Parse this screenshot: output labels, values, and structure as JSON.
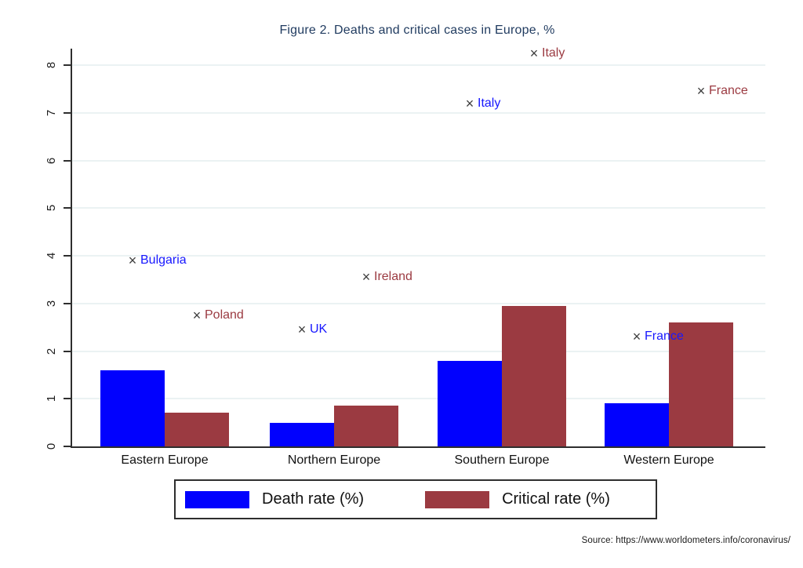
{
  "colors": {
    "death_bar": "#0101fe",
    "critical_bar": "#9b3a41",
    "death_label": "#1717ff",
    "critical_label": "#9b3a41",
    "title_text": "#1f3a5f",
    "marker": "#3d3d3d",
    "axis": "#2e2e2e",
    "gridline": "#ebf2f3"
  },
  "source_note": "Source:  https://www.worldometers.info/coronavirus/",
  "chart_data": {
    "type": "bar",
    "title": "Figure 2. Deaths and critical cases in Europe, %",
    "categories": [
      "Eastern Europe",
      "Northern Europe",
      "Southern Europe",
      "Western Europe"
    ],
    "series": [
      {
        "name": "Death rate (%)",
        "color": "#0101fe",
        "values": [
          1.6,
          0.5,
          1.8,
          0.9
        ]
      },
      {
        "name": "Critical rate (%)",
        "color": "#9b3a41",
        "values": [
          0.7,
          0.85,
          2.95,
          2.6
        ]
      }
    ],
    "scatter_labels": [
      {
        "country": "Bulgaria",
        "series": "death",
        "category": "Eastern Europe",
        "value": 3.9
      },
      {
        "country": "Poland",
        "series": "critical",
        "category": "Eastern Europe",
        "value": 2.75
      },
      {
        "country": "UK",
        "series": "death",
        "category": "Northern Europe",
        "value": 2.45
      },
      {
        "country": "Ireland",
        "series": "critical",
        "category": "Northern Europe",
        "value": 3.55
      },
      {
        "country": "Italy",
        "series": "death",
        "category": "Southern Europe",
        "value": 7.2
      },
      {
        "country": "Italy",
        "series": "critical",
        "category": "Southern Europe",
        "value": 8.25
      },
      {
        "country": "France",
        "series": "death",
        "category": "Western Europe",
        "value": 2.3
      },
      {
        "country": "France",
        "series": "critical",
        "category": "Western Europe",
        "value": 7.45
      }
    ],
    "marker_glyph": "×",
    "ylim": [
      0,
      8
    ],
    "yticks": [
      0,
      1,
      2,
      3,
      4,
      5,
      6,
      7,
      8
    ],
    "grid": true,
    "legend_position": "bottom"
  }
}
